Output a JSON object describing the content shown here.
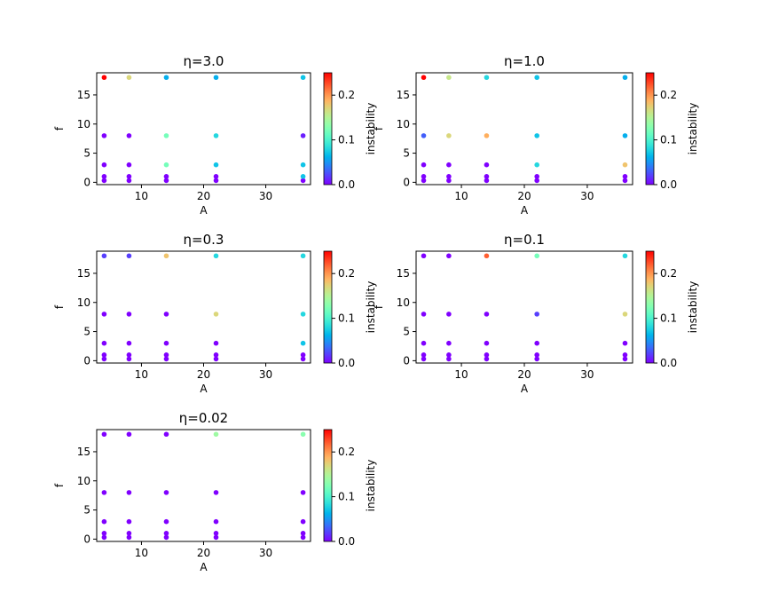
{
  "chart_data": {
    "type": "scatter",
    "xlabel": "A",
    "ylabel": "f",
    "colorbar_label": "instability",
    "colormap": "rainbow",
    "colorbar_range": [
      0,
      0.25
    ],
    "colorbar_ticks": [
      "0.0",
      "0.1",
      "0.2"
    ],
    "xlim": [
      2.8,
      37.2
    ],
    "ylim": [
      -0.4,
      18.8
    ],
    "x_ticks": [
      "10",
      "20",
      "30"
    ],
    "y_ticks": [
      "0",
      "5",
      "10",
      "15"
    ],
    "A_values": [
      4,
      8,
      14,
      22,
      36
    ],
    "f_values": [
      0.3,
      1,
      3,
      8,
      18
    ],
    "panels": [
      {
        "title": "η=3.0",
        "instability": [
          [
            0,
            0,
            0,
            0,
            0
          ],
          [
            0,
            0,
            0,
            0,
            0.07
          ],
          [
            0,
            0,
            0.12,
            0.07,
            0.07
          ],
          [
            0,
            0,
            0.12,
            0.08,
            0.01
          ],
          [
            0.25,
            0.17,
            0.06,
            0.06,
            0.07
          ]
        ]
      },
      {
        "title": "η=1.0",
        "instability": [
          [
            0,
            0,
            0,
            0,
            0
          ],
          [
            0,
            0,
            0,
            0,
            0
          ],
          [
            0,
            0,
            0,
            0.08,
            0.18
          ],
          [
            0.03,
            0.17,
            0.19,
            0.07,
            0.06
          ],
          [
            0.25,
            0.16,
            0.08,
            0.07,
            0.06
          ]
        ]
      },
      {
        "title": "η=0.3",
        "instability": [
          [
            0,
            0,
            0,
            0,
            0
          ],
          [
            0,
            0,
            0,
            0,
            0
          ],
          [
            0,
            0,
            0,
            0,
            0.07
          ],
          [
            0,
            0,
            0,
            0.17,
            0.08
          ],
          [
            0.02,
            0.02,
            0.18,
            0.08,
            0.08
          ]
        ]
      },
      {
        "title": "η=0.1",
        "instability": [
          [
            0,
            0,
            0,
            0,
            0
          ],
          [
            0,
            0,
            0,
            0,
            0
          ],
          [
            0,
            0,
            0,
            0,
            0
          ],
          [
            0,
            0,
            0,
            0.02,
            0.17
          ],
          [
            0,
            0,
            0.22,
            0.12,
            0.08
          ]
        ]
      },
      {
        "title": "η=0.02",
        "instability": [
          [
            0,
            0,
            0,
            0,
            0
          ],
          [
            0,
            0,
            0,
            0,
            0
          ],
          [
            0,
            0,
            0,
            0,
            0
          ],
          [
            0,
            0,
            0,
            0,
            0
          ],
          [
            0,
            0,
            0,
            0.14,
            0.13
          ]
        ]
      }
    ]
  }
}
